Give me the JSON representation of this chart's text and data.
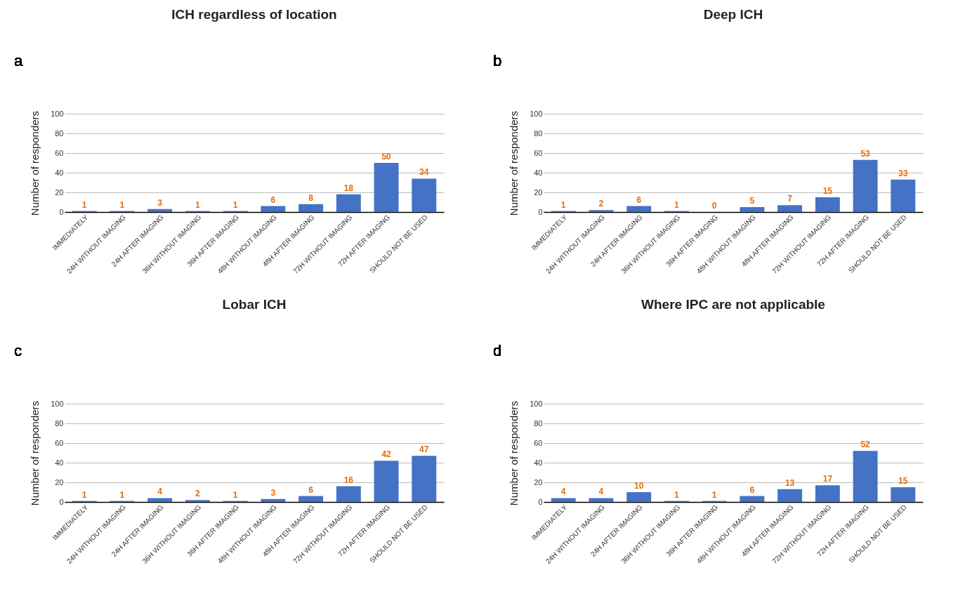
{
  "chart_data": [
    {
      "type": "bar",
      "title": "ICH regardless of location",
      "ylabel": "Number of responders",
      "annotations": [
        "a"
      ],
      "categories": [
        "IMMEDIATELY",
        "24H WITHOUT IMAGING",
        "24H AFTER IMAGING",
        "36H WITHOUT IMAGING",
        "36H AFTER IMAGING",
        "48H WITHOUT IMAGING",
        "48H AFTER IMAGING",
        "72H WITHOUT IMAGING",
        "72H AFTER IMAGING",
        "SHOULD NOT BE USED"
      ],
      "values": [
        1,
        1,
        3,
        1,
        1,
        6,
        8,
        18,
        50,
        34
      ],
      "color": "#4472c4",
      "ylim": [
        0,
        100
      ],
      "yticks": [
        0,
        20,
        40,
        60,
        80,
        100
      ],
      "grid": "y",
      "data_labels": true
    },
    {
      "type": "bar",
      "title": "Deep ICH",
      "ylabel": "Number of responders",
      "annotations": [
        "b"
      ],
      "categories": [
        "IMMEDIATELY",
        "24H WITHOUT IMAGING",
        "24H AFTER IMAGING",
        "36H WITHOUT IMAGING",
        "36H AFTER IMAGING",
        "48H WITHOUT IMAGING",
        "48H AFTER IMAGING",
        "72H WITHOUT IMAGING",
        "72H AFTER IMAGING",
        "SHOULD NOT BE USED"
      ],
      "values": [
        1,
        2,
        6,
        1,
        0,
        5,
        7,
        15,
        53,
        33
      ],
      "color": "#4472c4",
      "ylim": [
        0,
        100
      ],
      "yticks": [
        0,
        20,
        40,
        60,
        80,
        100
      ],
      "grid": "y",
      "data_labels": true
    },
    {
      "type": "bar",
      "title": "Lobar ICH",
      "ylabel": "Number of responders",
      "annotations": [
        "c"
      ],
      "categories": [
        "IMMEDIATELY",
        "24H WITHOUT IMAGING",
        "24H AFTER IMAGING",
        "36H WITHOUT IMAGING",
        "36H AFTER IMAGING",
        "48H WITHOUT IMAGING",
        "48H AFTER IMAGING",
        "72H WITHOUT IMAGING",
        "72H AFTER IMAGING",
        "SHOULD NOT BE USED"
      ],
      "values": [
        1,
        1,
        4,
        2,
        1,
        3,
        6,
        16,
        42,
        47
      ],
      "color": "#4472c4",
      "ylim": [
        0,
        100
      ],
      "yticks": [
        0,
        20,
        40,
        60,
        80,
        100
      ],
      "grid": "y",
      "data_labels": true
    },
    {
      "type": "bar",
      "title": "Where IPC are not applicable",
      "ylabel": "Number of responders",
      "annotations": [
        "d"
      ],
      "categories": [
        "IMMEDIATELY",
        "24H WITHOUT IMAGING",
        "24H AFTER IMAGING",
        "36H WITHOUT IMAGING",
        "36H AFTER IMAGING",
        "48H WITHOUT IMAGING",
        "48H AFTER IMAGING",
        "72H WITHOUT IMAGING",
        "72H AFTER IMAGING",
        "SHOULD NOT BE USED"
      ],
      "values": [
        4,
        4,
        10,
        1,
        1,
        6,
        13,
        17,
        52,
        15
      ],
      "color": "#4472c4",
      "ylim": [
        0,
        100
      ],
      "yticks": [
        0,
        20,
        40,
        60,
        80,
        100
      ],
      "grid": "y",
      "data_labels": true
    }
  ]
}
